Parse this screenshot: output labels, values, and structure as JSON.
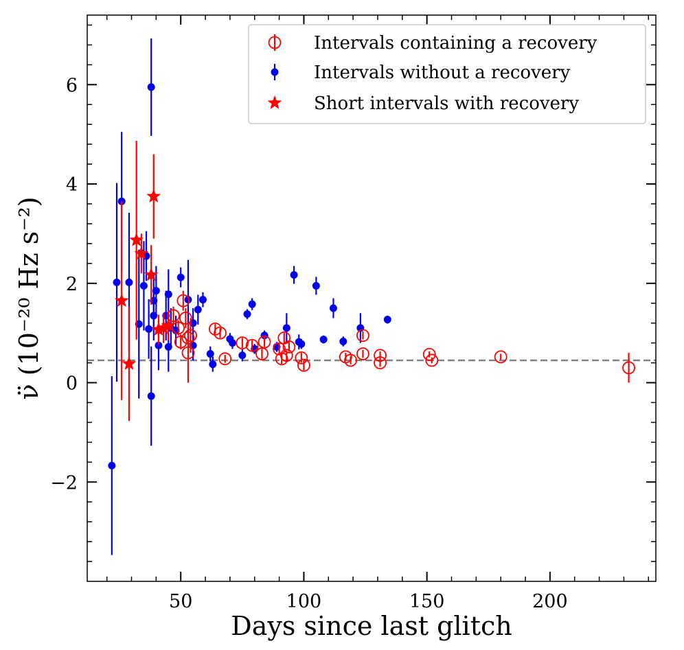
{
  "chart_data": {
    "type": "scatter",
    "xlabel": "Days since last glitch",
    "ylabel": "ν̈ (10⁻²⁰ Hz s⁻²)",
    "xlim": [
      12,
      243
    ],
    "ylim": [
      -4.0,
      7.4
    ],
    "x_ticks": [
      50,
      100,
      150,
      200
    ],
    "x_tick_labels": [
      "50",
      "100",
      "150",
      "200"
    ],
    "y_ticks": [
      -2,
      0,
      2,
      4,
      6
    ],
    "y_tick_labels": [
      "−2",
      "0",
      "2",
      "4",
      "6"
    ],
    "reference_line": {
      "y": 0.45,
      "style": "dashed",
      "color": "#808080"
    },
    "legend_position": "top-right",
    "series": [
      {
        "name": "Intervals containing a recovery",
        "marker": "open-circle",
        "color": "#ff0000",
        "points": [
          {
            "x": 47,
            "y": 1.35,
            "err": 0.18
          },
          {
            "x": 49,
            "y": 1.1,
            "err": 0.15
          },
          {
            "x": 50,
            "y": 0.82,
            "err": 0.15
          },
          {
            "x": 51,
            "y": 1.65,
            "err": 0.2
          },
          {
            "x": 52,
            "y": 1.3,
            "err": 0.2
          },
          {
            "x": 53,
            "y": 0.9,
            "err": 0.2
          },
          {
            "x": 54,
            "y": 0.95,
            "err": 0.35
          },
          {
            "x": 53,
            "y": 0.6,
            "err": 0.6
          },
          {
            "x": 64,
            "y": 1.08,
            "err": 0.1
          },
          {
            "x": 66,
            "y": 1.0,
            "err": 0.1
          },
          {
            "x": 68,
            "y": 0.48,
            "err": 0.08
          },
          {
            "x": 75,
            "y": 0.8,
            "err": 0.1
          },
          {
            "x": 79,
            "y": 0.75,
            "err": 0.1
          },
          {
            "x": 83,
            "y": 0.58,
            "err": 0.1
          },
          {
            "x": 84,
            "y": 0.82,
            "err": 0.1
          },
          {
            "x": 90,
            "y": 0.68,
            "err": 0.1
          },
          {
            "x": 91,
            "y": 0.48,
            "err": 0.1
          },
          {
            "x": 92,
            "y": 0.9,
            "err": 0.1
          },
          {
            "x": 93,
            "y": 0.55,
            "err": 0.1
          },
          {
            "x": 94,
            "y": 0.72,
            "err": 0.1
          },
          {
            "x": 99,
            "y": 0.5,
            "err": 0.1
          },
          {
            "x": 100,
            "y": 0.35,
            "err": 0.1
          },
          {
            "x": 117,
            "y": 0.52,
            "err": 0.08
          },
          {
            "x": 119,
            "y": 0.45,
            "err": 0.08
          },
          {
            "x": 124,
            "y": 0.95,
            "err": 0.08
          },
          {
            "x": 124,
            "y": 0.58,
            "err": 0.08
          },
          {
            "x": 131,
            "y": 0.55,
            "err": 0.08
          },
          {
            "x": 131,
            "y": 0.4,
            "err": 0.08
          },
          {
            "x": 151,
            "y": 0.57,
            "err": 0.06
          },
          {
            "x": 152,
            "y": 0.45,
            "err": 0.06
          },
          {
            "x": 180,
            "y": 0.52,
            "err": 0.06
          },
          {
            "x": 232,
            "y": 0.3,
            "err": 0.3
          }
        ]
      },
      {
        "name": "Intervals without a recovery",
        "marker": "filled-circle",
        "color": "#0000ee",
        "points": [
          {
            "x": 22,
            "y": -1.67,
            "err": 1.8
          },
          {
            "x": 24,
            "y": 2.02,
            "err": 2.0
          },
          {
            "x": 26,
            "y": 3.65,
            "err": 1.4
          },
          {
            "x": 29,
            "y": 2.02,
            "err": 1.4
          },
          {
            "x": 33,
            "y": 1.18,
            "err": 1.5
          },
          {
            "x": 35,
            "y": 1.95,
            "err": 0.9
          },
          {
            "x": 36,
            "y": 2.55,
            "err": 0.5
          },
          {
            "x": 37,
            "y": 1.08,
            "err": 0.6
          },
          {
            "x": 38,
            "y": 5.95,
            "err": 0.98
          },
          {
            "x": 38,
            "y": -0.27,
            "err": 1.0
          },
          {
            "x": 39,
            "y": 1.65,
            "err": 0.5
          },
          {
            "x": 39,
            "y": 1.35,
            "err": 0.5
          },
          {
            "x": 40,
            "y": 1.85,
            "err": 0.5
          },
          {
            "x": 41,
            "y": 0.75,
            "err": 0.5
          },
          {
            "x": 44,
            "y": 1.35,
            "err": 0.5
          },
          {
            "x": 45,
            "y": 1.78,
            "err": 0.5
          },
          {
            "x": 45,
            "y": 0.72,
            "err": 0.5
          },
          {
            "x": 46,
            "y": 1.1,
            "err": 0.4
          },
          {
            "x": 48,
            "y": 1.05,
            "err": 0.3
          },
          {
            "x": 50,
            "y": 2.12,
            "err": 0.2
          },
          {
            "x": 53,
            "y": 1.67,
            "err": 0.8
          },
          {
            "x": 55,
            "y": 0.75,
            "err": 0.3
          },
          {
            "x": 55,
            "y": 1.2,
            "err": 0.3
          },
          {
            "x": 57,
            "y": 1.47,
            "err": 0.3
          },
          {
            "x": 59,
            "y": 1.67,
            "err": 0.15
          },
          {
            "x": 62,
            "y": 0.58,
            "err": 0.15
          },
          {
            "x": 63,
            "y": 0.37,
            "err": 0.15
          },
          {
            "x": 70,
            "y": 0.88,
            "err": 0.12
          },
          {
            "x": 71,
            "y": 0.8,
            "err": 0.12
          },
          {
            "x": 75,
            "y": 0.55,
            "err": 0.12
          },
          {
            "x": 77,
            "y": 1.38,
            "err": 0.1
          },
          {
            "x": 79,
            "y": 1.58,
            "err": 0.12
          },
          {
            "x": 80,
            "y": 0.68,
            "err": 0.1
          },
          {
            "x": 84,
            "y": 0.95,
            "err": 0.1
          },
          {
            "x": 89,
            "y": 0.72,
            "err": 0.1
          },
          {
            "x": 93,
            "y": 1.1,
            "err": 0.3
          },
          {
            "x": 96,
            "y": 2.17,
            "err": 0.18
          },
          {
            "x": 98,
            "y": 0.82,
            "err": 0.15
          },
          {
            "x": 99,
            "y": 0.78,
            "err": 0.1
          },
          {
            "x": 105,
            "y": 1.95,
            "err": 0.18
          },
          {
            "x": 108,
            "y": 0.87,
            "err": 0.08
          },
          {
            "x": 112,
            "y": 1.5,
            "err": 0.2
          },
          {
            "x": 116,
            "y": 0.83,
            "err": 0.1
          },
          {
            "x": 123,
            "y": 1.1,
            "err": 0.3
          },
          {
            "x": 134,
            "y": 1.27,
            "err": 0.08
          }
        ]
      },
      {
        "name": "Short intervals with recovery",
        "marker": "filled-star",
        "color": "#ff0000",
        "points": [
          {
            "x": 26,
            "y": 1.65,
            "err": 2.0
          },
          {
            "x": 29,
            "y": 0.38,
            "err": 1.15
          },
          {
            "x": 32,
            "y": 2.87,
            "err": 2.0
          },
          {
            "x": 34,
            "y": 2.6,
            "err": 0.4
          },
          {
            "x": 38,
            "y": 2.17,
            "err": 0.6
          },
          {
            "x": 39,
            "y": 3.75,
            "err": 0.85
          },
          {
            "x": 41,
            "y": 1.07,
            "err": 0.3
          },
          {
            "x": 43,
            "y": 1.1,
            "err": 0.3
          },
          {
            "x": 45,
            "y": 1.15,
            "err": 0.3
          }
        ]
      }
    ]
  }
}
